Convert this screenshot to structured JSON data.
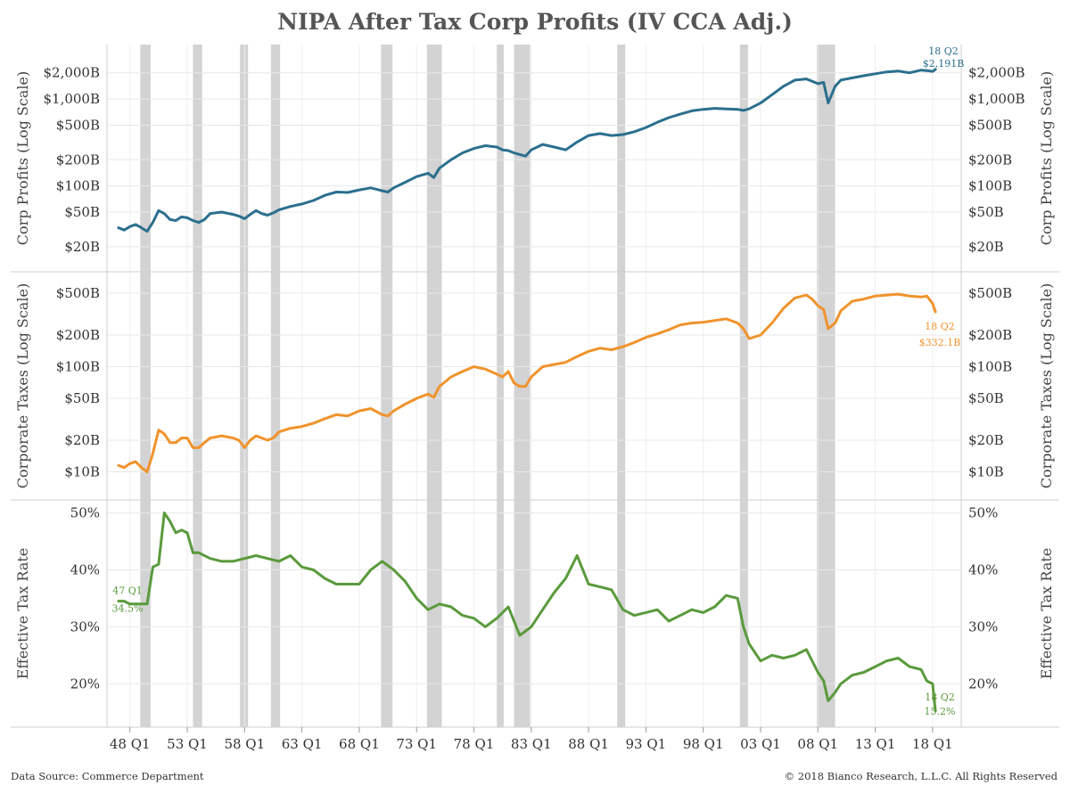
{
  "title": "NIPA After Tax Corp Profits (IV CCA Adj.)",
  "footer": {
    "source": "Data Source: Commerce Department",
    "copyright": "© 2018 Bianco Research, L.L.C. All Rights Reserved"
  },
  "colors": {
    "profits": "#2b6f8e",
    "taxes": "#f0932c",
    "rate": "#5a9a3c",
    "recession": "#d3d3d3"
  },
  "chart_data": {
    "type": "line",
    "x_ticks": [
      "48 Q1",
      "53 Q1",
      "58 Q1",
      "63 Q1",
      "68 Q1",
      "73 Q1",
      "78 Q1",
      "83 Q1",
      "88 Q1",
      "93 Q1",
      "98 Q1",
      "03 Q1",
      "08 Q1",
      "13 Q1",
      "18 Q1"
    ],
    "x_tick_years": [
      1948,
      1953,
      1958,
      1963,
      1968,
      1973,
      1978,
      1983,
      1988,
      1993,
      1998,
      2003,
      2008,
      2013,
      2018
    ],
    "x_range": [
      1946.0,
      2020.5
    ],
    "recessions": [
      [
        1948.9,
        1949.8
      ],
      [
        1953.5,
        1954.3
      ],
      [
        1957.6,
        1958.3
      ],
      [
        1960.3,
        1961.1
      ],
      [
        1969.9,
        1970.9
      ],
      [
        1973.9,
        1975.2
      ],
      [
        1980.0,
        1980.6
      ],
      [
        1981.5,
        1982.9
      ],
      [
        1990.5,
        1991.2
      ],
      [
        2001.2,
        2001.9
      ],
      [
        2007.9,
        2009.5
      ]
    ],
    "panels": [
      {
        "name": "profits",
        "ylabel": "Corp Profits (Log Scale)",
        "scale": "log",
        "ylim": [
          15,
          2900
        ],
        "ticks": [
          {
            "v": 20,
            "label": "$20B"
          },
          {
            "v": 50,
            "label": "$50B"
          },
          {
            "v": 100,
            "label": "$100B"
          },
          {
            "v": 200,
            "label": "$200B"
          },
          {
            "v": 500,
            "label": "$500B"
          },
          {
            "v": 1000,
            "label": "$1,000B"
          },
          {
            "v": 2000,
            "label": "$2,000B"
          }
        ],
        "annotation": {
          "line1": "18 Q2",
          "line2": "$2,191B"
        },
        "x": [
          1947,
          1947.5,
          1948,
          1948.5,
          1949,
          1949.5,
          1950,
          1950.5,
          1951,
          1951.5,
          1952,
          1952.5,
          1953,
          1953.5,
          1954,
          1954.5,
          1955,
          1956,
          1957,
          1957.5,
          1958,
          1958.5,
          1959,
          1959.5,
          1960,
          1960.5,
          1961,
          1962,
          1963,
          1964,
          1965,
          1966,
          1967,
          1968,
          1969,
          1970,
          1970.5,
          1971,
          1972,
          1973,
          1974,
          1974.5,
          1975,
          1976,
          1977,
          1978,
          1979,
          1980,
          1980.5,
          1981,
          1981.5,
          1982,
          1982.5,
          1983,
          1984,
          1985,
          1986,
          1987,
          1988,
          1989,
          1990,
          1991,
          1992,
          1993,
          1994,
          1995,
          1996,
          1997,
          1998,
          1999,
          2000,
          2001,
          2001.5,
          2002,
          2003,
          2004,
          2005,
          2006,
          2007,
          2007.5,
          2008,
          2008.5,
          2008.9,
          2009.5,
          2010,
          2011,
          2012,
          2013,
          2014,
          2015,
          2016,
          2017,
          2017.5,
          2018,
          2018.25
        ],
        "y": [
          33,
          31,
          34,
          36,
          33,
          30,
          38,
          52,
          48,
          41,
          40,
          44,
          43,
          40,
          38,
          41,
          48,
          50,
          47,
          45,
          42,
          47,
          52,
          48,
          46,
          49,
          53,
          58,
          62,
          68,
          78,
          85,
          84,
          90,
          95,
          88,
          85,
          95,
          110,
          128,
          140,
          125,
          160,
          200,
          240,
          270,
          290,
          280,
          260,
          255,
          240,
          230,
          220,
          260,
          300,
          280,
          260,
          320,
          380,
          400,
          380,
          390,
          420,
          470,
          540,
          610,
          670,
          730,
          760,
          780,
          770,
          760,
          740,
          770,
          900,
          1120,
          1400,
          1650,
          1700,
          1600,
          1500,
          1550,
          900,
          1400,
          1650,
          1750,
          1850,
          1950,
          2050,
          2100,
          2000,
          2150,
          2120,
          2080,
          2191
        ]
      },
      {
        "name": "taxes",
        "ylabel": "Corporate Taxes (Log Scale)",
        "scale": "log",
        "ylim": [
          8,
          620
        ],
        "ticks": [
          {
            "v": 10,
            "label": "$10B"
          },
          {
            "v": 20,
            "label": "$20B"
          },
          {
            "v": 50,
            "label": "$50B"
          },
          {
            "v": 100,
            "label": "$100B"
          },
          {
            "v": 200,
            "label": "$200B"
          },
          {
            "v": 500,
            "label": "$500B"
          }
        ],
        "annotation": {
          "line1": "18 Q2",
          "line2": "$332.1B"
        },
        "x": [
          1947,
          1947.5,
          1948,
          1948.5,
          1949,
          1949.5,
          1950,
          1950.5,
          1951,
          1951.5,
          1952,
          1952.5,
          1953,
          1953.5,
          1954,
          1954.5,
          1955,
          1956,
          1957,
          1957.5,
          1958,
          1958.5,
          1959,
          1959.5,
          1960,
          1960.5,
          1961,
          1962,
          1963,
          1964,
          1965,
          1966,
          1967,
          1968,
          1969,
          1970,
          1970.5,
          1971,
          1972,
          1973,
          1974,
          1974.5,
          1975,
          1976,
          1977,
          1978,
          1979,
          1980,
          1980.5,
          1981,
          1981.5,
          1982,
          1982.5,
          1983,
          1984,
          1985,
          1986,
          1987,
          1988,
          1989,
          1990,
          1991,
          1992,
          1993,
          1994,
          1995,
          1996,
          1997,
          1998,
          1999,
          2000,
          2001,
          2001.5,
          2002,
          2003,
          2004,
          2005,
          2006,
          2007,
          2007.5,
          2008,
          2008.5,
          2008.9,
          2009.5,
          2010,
          2011,
          2012,
          2013,
          2014,
          2015,
          2016,
          2017,
          2017.5,
          2018,
          2018.25
        ],
        "y": [
          11.5,
          11,
          12,
          12.5,
          11,
          10,
          15,
          25,
          23,
          19,
          19,
          21,
          21,
          17,
          17,
          19,
          21,
          22,
          21,
          20,
          17,
          20,
          22,
          21,
          20,
          21,
          24,
          26,
          27,
          29,
          32,
          35,
          34,
          38,
          40,
          35,
          34,
          38,
          44,
          50,
          55,
          51,
          65,
          80,
          90,
          100,
          95,
          85,
          80,
          90,
          70,
          65,
          65,
          80,
          100,
          105,
          110,
          125,
          140,
          150,
          145,
          155,
          170,
          190,
          205,
          225,
          250,
          260,
          265,
          275,
          285,
          260,
          230,
          185,
          200,
          260,
          360,
          450,
          480,
          440,
          380,
          350,
          230,
          260,
          340,
          420,
          440,
          470,
          480,
          490,
          470,
          460,
          470,
          400,
          332.1
        ]
      },
      {
        "name": "rate",
        "ylabel": "Effective Tax Rate",
        "scale": "linear",
        "ylim": [
          13,
          51.5
        ],
        "ticks": [
          {
            "v": 20,
            "label": "20%"
          },
          {
            "v": 30,
            "label": "30%"
          },
          {
            "v": 40,
            "label": "40%"
          },
          {
            "v": 50,
            "label": "50%"
          }
        ],
        "annotation_start": {
          "line1": "47 Q1",
          "line2": "34.5%"
        },
        "annotation": {
          "line1": "18 Q2",
          "line2": "15.2%"
        },
        "x": [
          1947,
          1947.5,
          1948,
          1948.5,
          1949,
          1949.5,
          1950,
          1950.5,
          1951,
          1951.5,
          1952,
          1952.5,
          1953,
          1953.5,
          1954,
          1955,
          1956,
          1957,
          1958,
          1959,
          1960,
          1961,
          1962,
          1963,
          1964,
          1965,
          1966,
          1967,
          1968,
          1969,
          1970,
          1971,
          1972,
          1973,
          1974,
          1975,
          1976,
          1977,
          1978,
          1979,
          1980,
          1981,
          1982,
          1983,
          1984,
          1985,
          1986,
          1987,
          1988,
          1989,
          1990,
          1991,
          1992,
          1993,
          1994,
          1995,
          1996,
          1997,
          1998,
          1999,
          2000,
          2001,
          2001.5,
          2002,
          2003,
          2004,
          2005,
          2006,
          2007,
          2008,
          2008.5,
          2008.9,
          2009.5,
          2010,
          2011,
          2012,
          2013,
          2014,
          2015,
          2016,
          2017,
          2017.5,
          2018,
          2018.25
        ],
        "y": [
          34.5,
          34.5,
          34.0,
          34.0,
          34.0,
          34.0,
          40.5,
          41.0,
          50.0,
          48.5,
          46.5,
          47.0,
          46.5,
          43.0,
          43.0,
          42.0,
          41.5,
          41.5,
          42.0,
          42.5,
          42.0,
          41.5,
          42.5,
          40.5,
          40.0,
          38.5,
          37.5,
          37.5,
          37.5,
          40.0,
          41.5,
          40.0,
          38.0,
          35.0,
          33.0,
          34.0,
          33.5,
          32.0,
          31.5,
          30.0,
          31.5,
          33.5,
          28.5,
          30.0,
          33.0,
          36.0,
          38.5,
          42.5,
          37.5,
          37.0,
          36.5,
          33.0,
          32.0,
          32.5,
          33.0,
          31.0,
          32.0,
          33.0,
          32.5,
          33.5,
          35.5,
          35.0,
          30.0,
          27.0,
          24.0,
          25.0,
          24.5,
          25.0,
          26.0,
          22.0,
          20.5,
          17.0,
          18.5,
          20.0,
          21.5,
          22.0,
          23.0,
          24.0,
          24.5,
          23.0,
          22.5,
          20.5,
          20.0,
          15.2
        ]
      }
    ]
  }
}
